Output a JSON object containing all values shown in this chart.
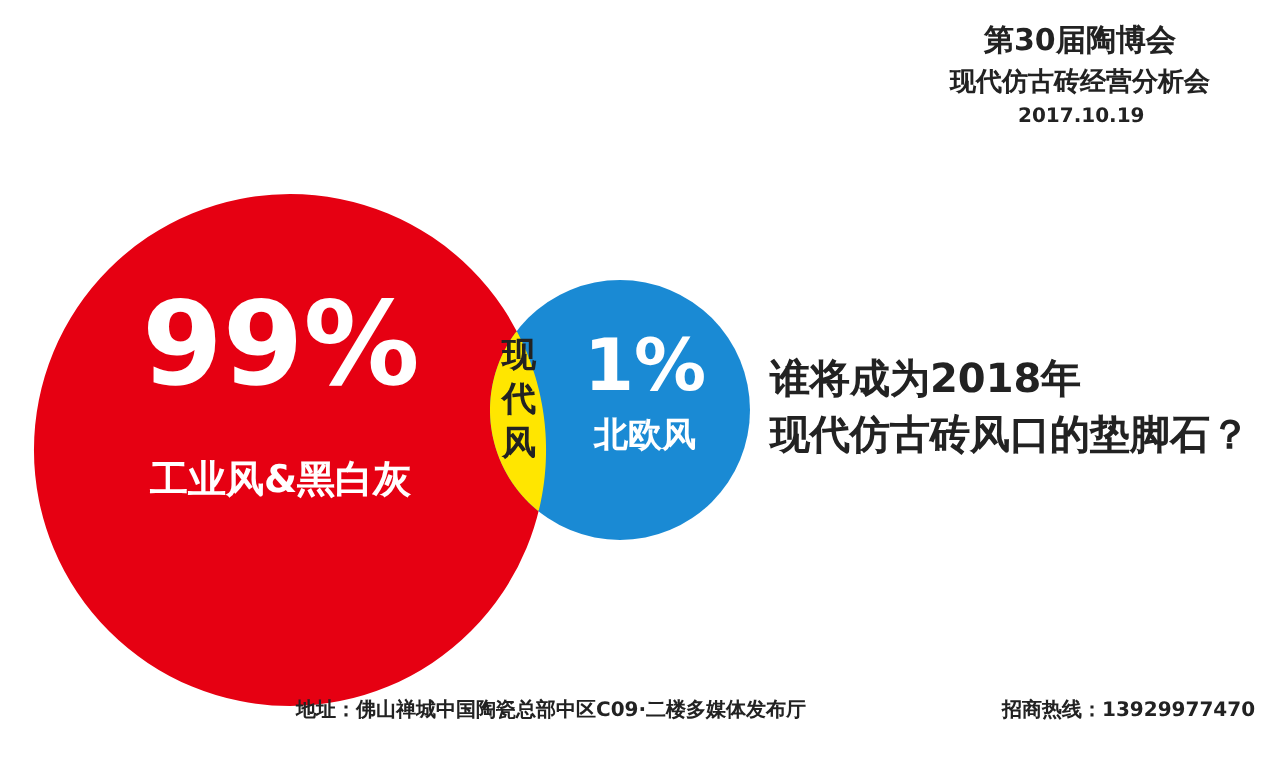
{
  "chart_data": {
    "type": "other",
    "title": "第30届陶博会",
    "subtitle": "现代仿古砖经营分析会",
    "categories": [
      "工业风&黑白灰",
      "北欧风"
    ],
    "values": [
      99,
      1
    ],
    "value_labels": [
      "99%",
      "1%"
    ],
    "colors": [
      "#e60012",
      "#1a8ad4"
    ],
    "annotations": [
      "现代风",
      "2017.10.19",
      "谁将成为2018年",
      "现代仿古砖风口的垫脚石？",
      "地址：佛山禅城中国陶瓷总部中区C09·二楼多媒体发布厅",
      "招商热线：13929977470"
    ]
  }
}
